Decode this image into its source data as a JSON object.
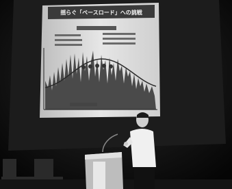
{
  "slide": {
    "title": "揺らぐ「ベースロード」への挑戦"
  }
}
